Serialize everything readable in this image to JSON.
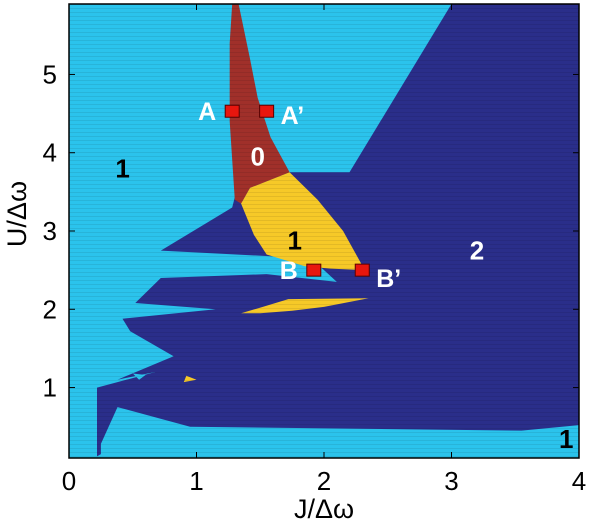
{
  "chart_data": {
    "type": "heatmap",
    "xlabel": "J/Δω",
    "ylabel": "U/Δω",
    "xlim": [
      0,
      4
    ],
    "ylim": [
      0.1,
      5.9
    ],
    "xticks": [
      {
        "value": 0,
        "label": "0"
      },
      {
        "value": 1,
        "label": "1"
      },
      {
        "value": 2,
        "label": "2"
      },
      {
        "value": 3,
        "label": "3"
      },
      {
        "value": 4,
        "label": "4"
      }
    ],
    "yticks": [
      {
        "value": 1,
        "label": "1"
      },
      {
        "value": 2,
        "label": "2"
      },
      {
        "value": 3,
        "label": "3"
      },
      {
        "value": 4,
        "label": "4"
      },
      {
        "value": 5,
        "label": "5"
      }
    ],
    "colors": {
      "phase_0": "#a0302a",
      "phase_1": "#2bc3ec",
      "phase_1_minor": "#f6c928",
      "phase_2": "#2a2e8a",
      "marker": "#e8160e",
      "marker_edge": "#5a0000"
    },
    "regions": [
      {
        "phase": "phase_2",
        "polygon": [
          [
            3.0,
            5.9
          ],
          [
            4.0,
            5.9
          ],
          [
            4.0,
            0.52
          ],
          [
            3.55,
            0.45
          ],
          [
            0.95,
            0.5
          ],
          [
            0.38,
            0.75
          ],
          [
            0.25,
            0.28
          ],
          [
            0.25,
            0.15
          ],
          [
            0.22,
            0.12
          ],
          [
            0.22,
            1.0
          ],
          [
            0.68,
            1.2
          ],
          [
            0.38,
            1.1
          ],
          [
            0.82,
            1.4
          ],
          [
            0.48,
            1.72
          ],
          [
            0.42,
            1.88
          ],
          [
            1.15,
            2.0
          ],
          [
            0.52,
            2.08
          ],
          [
            0.72,
            2.4
          ],
          [
            1.55,
            2.45
          ],
          [
            2.1,
            2.35
          ],
          [
            1.9,
            2.65
          ],
          [
            0.72,
            2.75
          ],
          [
            1.28,
            3.3
          ],
          [
            1.35,
            3.75
          ],
          [
            2.2,
            3.75
          ]
        ]
      },
      {
        "phase": "phase_0",
        "polygon": [
          [
            1.28,
            5.9
          ],
          [
            1.33,
            5.9
          ],
          [
            1.42,
            5.2
          ],
          [
            1.48,
            4.7
          ],
          [
            1.58,
            4.2
          ],
          [
            1.73,
            3.75
          ],
          [
            1.42,
            3.55
          ],
          [
            1.35,
            3.35
          ],
          [
            1.3,
            3.4
          ],
          [
            1.26,
            4.4
          ],
          [
            1.26,
            5.4
          ]
        ]
      },
      {
        "phase": "phase_1_minor",
        "polygon": [
          [
            1.73,
            3.75
          ],
          [
            1.95,
            3.4
          ],
          [
            2.15,
            3.0
          ],
          [
            2.32,
            2.5
          ],
          [
            2.05,
            2.52
          ],
          [
            1.85,
            2.55
          ],
          [
            1.55,
            2.7
          ],
          [
            1.45,
            2.95
          ],
          [
            1.35,
            3.35
          ],
          [
            1.42,
            3.55
          ]
        ]
      },
      {
        "phase": "phase_1_minor",
        "polygon": [
          [
            1.72,
            2.13
          ],
          [
            2.35,
            2.14
          ],
          [
            2.0,
            2.03
          ],
          [
            1.75,
            1.98
          ],
          [
            1.5,
            1.95
          ],
          [
            1.35,
            1.95
          ],
          [
            1.52,
            2.03
          ]
        ]
      },
      {
        "phase": "phase_1_minor",
        "polygon": [
          [
            0.92,
            1.15
          ],
          [
            1.0,
            1.1
          ],
          [
            0.9,
            1.07
          ]
        ]
      },
      {
        "phase": "phase_1",
        "polygon": [
          [
            0.5,
            1.18
          ],
          [
            0.6,
            1.16
          ],
          [
            0.55,
            1.1
          ]
        ]
      }
    ],
    "annotations": [
      {
        "text": "0",
        "x": 1.48,
        "y": 3.95,
        "color": "#ffffff"
      },
      {
        "text": "1",
        "x": 0.42,
        "y": 3.8,
        "color": "#000000"
      },
      {
        "text": "1",
        "x": 1.77,
        "y": 2.88,
        "color": "#000000"
      },
      {
        "text": "1",
        "x": 3.9,
        "y": 0.34,
        "color": "#000000",
        "small": true
      },
      {
        "text": "2",
        "x": 3.2,
        "y": 2.75,
        "color": "#ffffff"
      }
    ],
    "points": [
      {
        "name": "A",
        "x": 1.28,
        "y": 4.53,
        "label_dx": -1,
        "label_dy": 0
      },
      {
        "name": "A’",
        "x": 1.55,
        "y": 4.53,
        "label_dx": 1,
        "label_dy": -0.05
      },
      {
        "name": "B",
        "x": 1.92,
        "y": 2.5,
        "label_dx": -1,
        "label_dy": 0
      },
      {
        "name": "B’",
        "x": 2.3,
        "y": 2.5,
        "label_dx": 1,
        "label_dy": -0.1
      }
    ]
  }
}
